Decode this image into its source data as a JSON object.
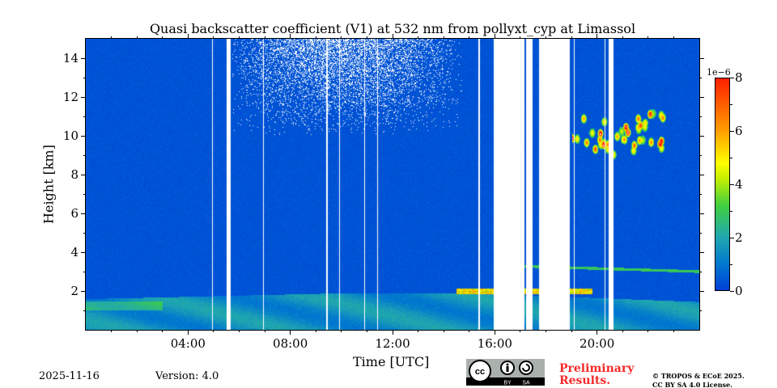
{
  "chart_data": {
    "type": "heatmap",
    "title": "Quasi backscatter coefficient (V1) at 532 nm from pollyxt_cyp at Limassol",
    "xlabel": "Time [UTC]",
    "ylabel": "Height [km]",
    "xlim_hours": [
      0,
      24
    ],
    "ylim_km": [
      0,
      15
    ],
    "x_ticks": [
      "04:00",
      "08:00",
      "12:00",
      "16:00",
      "20:00"
    ],
    "x_tick_hours": [
      4,
      8,
      12,
      16,
      20
    ],
    "y_ticks": [
      "2",
      "4",
      "6",
      "8",
      "10",
      "12",
      "14"
    ],
    "y_tick_values": [
      2,
      4,
      6,
      8,
      10,
      12,
      14
    ],
    "colorbar": {
      "exponent_label": "1e−6",
      "range": [
        0,
        8
      ],
      "ticks": [
        "0",
        "2",
        "4",
        "6",
        "8"
      ],
      "tick_values": [
        0,
        2,
        4,
        6,
        8
      ],
      "colormap": [
        "#0040d8",
        "#0078d0",
        "#20a8b0",
        "#40d040",
        "#c8f000",
        "#ffff00",
        "#ffa000",
        "#ff2000"
      ]
    },
    "missing_data_hours": [
      [
        4.93,
        4.97
      ],
      [
        5.48,
        5.65
      ],
      [
        6.91,
        6.95
      ],
      [
        9.4,
        9.44
      ],
      [
        9.9,
        9.94
      ],
      [
        10.88,
        10.92
      ],
      [
        11.38,
        11.42
      ],
      [
        15.35,
        15.39
      ],
      [
        15.94,
        17.13
      ],
      [
        17.2,
        17.45
      ],
      [
        17.73,
        18.93
      ],
      [
        19.08,
        19.12
      ],
      [
        20.28,
        20.32
      ],
      [
        20.44,
        20.63
      ]
    ],
    "features": [
      {
        "name": "boundary layer",
        "time_hours": [
          0,
          24
        ],
        "height_km": [
          0,
          2.0
        ],
        "value": 1.8
      },
      {
        "name": "aerosol layer top",
        "time_hours": [
          14.5,
          19.8
        ],
        "height_km": [
          1.6,
          2.1
        ],
        "value": 5.5
      },
      {
        "name": "elevated layer",
        "time_hours": [
          17.0,
          24
        ],
        "height_km": [
          3.0,
          3.3
        ],
        "value": 2.8
      },
      {
        "name": "cirrus",
        "time_hours": [
          19.0,
          22.8
        ],
        "height_km": [
          7.8,
          11.3
        ],
        "value": 6.0
      }
    ]
  },
  "footer": {
    "date": "2025-11-16",
    "version": "Version: 4.0",
    "preliminary": [
      "Preliminary",
      "Results."
    ],
    "copyright": [
      "© TROPOS & ECoE 2025.",
      "CC BY SA 4.0 License."
    ],
    "license_badge": [
      "BY",
      "SA"
    ]
  }
}
